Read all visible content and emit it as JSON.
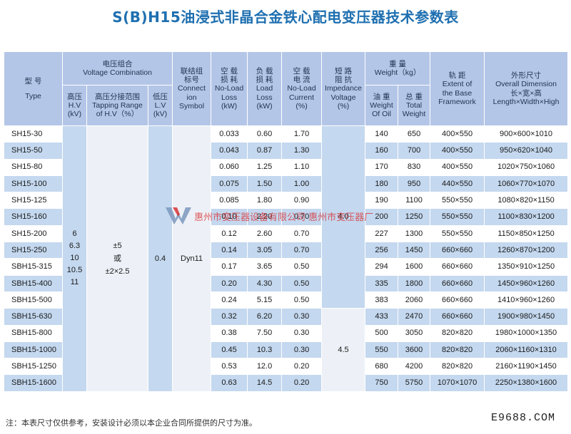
{
  "title": "S(B)H15油浸式非晶合金铁心配电变压器技术参数表",
  "header": {
    "type": [
      "型  号",
      "Type"
    ],
    "voltage_group": [
      "电压组合",
      "Voltage Combination"
    ],
    "hv": [
      "高压",
      "H.V",
      "(kV)"
    ],
    "tap": [
      "高压分接范围",
      "Tapping Range",
      "of H.V（%）"
    ],
    "lv": [
      "低压",
      "L.V",
      "(kV)"
    ],
    "conn": [
      "联结组",
      "标号",
      "Connect",
      "ion",
      "Symbol"
    ],
    "noload_loss": [
      "空  载",
      "损  耗",
      "No-Load",
      "Loss",
      "(kW)"
    ],
    "load_loss": [
      "负  载",
      "损  耗",
      "Load",
      "Loss",
      "(kW)"
    ],
    "noload_current": [
      "空  载",
      "电  流",
      "No-Load",
      "Current",
      "(%)"
    ],
    "impedance": [
      "短  路",
      "阻  抗",
      "Impedance",
      "Voltage",
      "(%)"
    ],
    "weight": [
      "重      量",
      "Weight（kg）"
    ],
    "oil_weight": [
      "油  重",
      "Weight",
      "Of Oil"
    ],
    "total_weight": [
      "总  重",
      "Total",
      "Weight"
    ],
    "base": [
      "轨      距",
      "Extent of",
      "the Base",
      "Framework"
    ],
    "dimension": [
      "外形尺寸",
      "Overall Dimension",
      "长×宽×高",
      "Length×Width×High"
    ]
  },
  "merged": {
    "hv": [
      "6",
      "6.3",
      "10",
      "10.5",
      "11"
    ],
    "tap": [
      "±5",
      "或",
      "±2×2.5"
    ],
    "lv": "0.4",
    "conn": "Dyn11",
    "impedance_a": "4.0",
    "impedance_b": "4.5"
  },
  "rows": [
    {
      "type": "SH15-30",
      "nl": "0.033",
      "ll": "0.60",
      "cur": "1.70",
      "oil": "140",
      "total": "650",
      "base": "400×550",
      "dim": "900×600×1010"
    },
    {
      "type": "SH15-50",
      "nl": "0.043",
      "ll": "0.87",
      "cur": "1.30",
      "oil": "160",
      "total": "700",
      "base": "400×550",
      "dim": "950×620×1040"
    },
    {
      "type": "SH15-80",
      "nl": "0.060",
      "ll": "1.25",
      "cur": "1.10",
      "oil": "170",
      "total": "830",
      "base": "400×550",
      "dim": "1020×750×1060"
    },
    {
      "type": "SH15-100",
      "nl": "0.075",
      "ll": "1.50",
      "cur": "1.00",
      "oil": "180",
      "total": "950",
      "base": "440×550",
      "dim": "1060×770×1070"
    },
    {
      "type": "SH15-125",
      "nl": "0.085",
      "ll": "1.80",
      "cur": "0.90",
      "oil": "190",
      "total": "1100",
      "base": "550×550",
      "dim": "1080×820×1150"
    },
    {
      "type": "SH15-160",
      "nl": "0.10",
      "ll": "2.20",
      "cur": "0.70",
      "oil": "200",
      "total": "1250",
      "base": "550×550",
      "dim": "1100×830×1200"
    },
    {
      "type": "SH15-200",
      "nl": "0.12",
      "ll": "2.60",
      "cur": "0.70",
      "oil": "227",
      "total": "1300",
      "base": "550×550",
      "dim": "1150×850×1250"
    },
    {
      "type": "SH15-250",
      "nl": "0.14",
      "ll": "3.05",
      "cur": "0.70",
      "oil": "256",
      "total": "1450",
      "base": "660×660",
      "dim": "1260×870×1200"
    },
    {
      "type": "SBH15-315",
      "nl": "0.17",
      "ll": "3.65",
      "cur": "0.50",
      "oil": "294",
      "total": "1600",
      "base": "660×660",
      "dim": "1350×910×1250"
    },
    {
      "type": "SBH15-400",
      "nl": "0.20",
      "ll": "4.30",
      "cur": "0.50",
      "oil": "335",
      "total": "1800",
      "base": "660×660",
      "dim": "1450×960×1260"
    },
    {
      "type": "SBH15-500",
      "nl": "0.24",
      "ll": "5.15",
      "cur": "0.50",
      "oil": "383",
      "total": "2060",
      "base": "660×660",
      "dim": "1410×960×1260"
    },
    {
      "type": "SBH15-630",
      "nl": "0.32",
      "ll": "6.20",
      "cur": "0.30",
      "oil": "433",
      "total": "2470",
      "base": "660×660",
      "dim": "1900×980×1450"
    },
    {
      "type": "SBH15-800",
      "nl": "0.38",
      "ll": "7.50",
      "cur": "0.30",
      "oil": "500",
      "total": "3050",
      "base": "820×820",
      "dim": "1980×1000×1350"
    },
    {
      "type": "SBH15-1000",
      "nl": "0.45",
      "ll": "10.3",
      "cur": "0.30",
      "oil": "550",
      "total": "3600",
      "base": "820×820",
      "dim": "2060×1160×1310"
    },
    {
      "type": "SBH15-1250",
      "nl": "0.53",
      "ll": "12.0",
      "cur": "0.20",
      "oil": "680",
      "total": "4200",
      "base": "820×820",
      "dim": "2160×1190×1450"
    },
    {
      "type": "SBH15-1600",
      "nl": "0.63",
      "ll": "14.5",
      "cur": "0.20",
      "oil": "750",
      "total": "5750",
      "base": "1070×1070",
      "dim": "2250×1380×1600"
    }
  ],
  "watermark": "惠州市变压器设备有限公司    惠州市变压器厂",
  "footnote": "注：本表尺寸仅供参考，安装设计必须以本企业合同所提供的尺寸为准。",
  "site": "E9688.COM",
  "colors": {
    "header_bg": "#b4c6e7",
    "row_blue": "#c4d8ef",
    "title": "#1e6fb0",
    "watermark": "#d8282a"
  }
}
